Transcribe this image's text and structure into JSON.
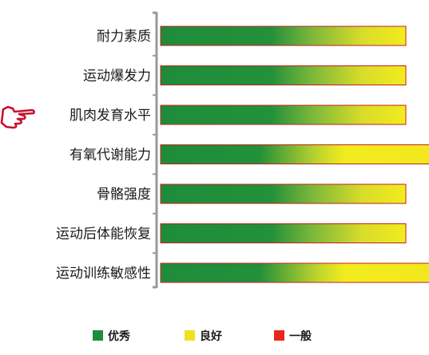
{
  "chart_data": {
    "type": "bar",
    "orientation": "horizontal",
    "categories": [
      "耐力素质",
      "运动爆发力",
      "肌肉发育水平",
      "有氧代谢能力",
      "骨骼强度",
      "运动后体能恢复",
      "运动训练敏感性"
    ],
    "values": [
      2,
      2,
      2,
      3,
      2,
      2,
      3
    ],
    "value_scale": {
      "min": 0,
      "max": 3,
      "levels": [
        "优秀",
        "良好",
        "一般"
      ]
    },
    "highlighted_category": "肌肉发育水平",
    "legend": [
      {
        "name": "优秀",
        "color": "#1e8c3a"
      },
      {
        "name": "良好",
        "color": "#f0e020"
      },
      {
        "name": "一般",
        "color": "#e8261c"
      }
    ],
    "grid": false,
    "legend_position": "bottom",
    "bar_border_color": "#c81e1e",
    "axis_color": "#999999",
    "pointer_color": "#c8102e",
    "pointer_icon": "pointing-hand-icon"
  }
}
